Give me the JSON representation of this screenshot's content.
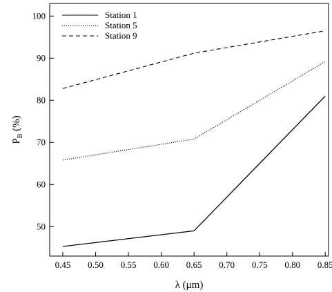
{
  "chart_data": {
    "type": "line",
    "x": [
      0.45,
      0.65,
      0.85
    ],
    "xticks": [
      0.45,
      0.5,
      0.55,
      0.6,
      0.65,
      0.7,
      0.75,
      0.8,
      0.85
    ],
    "xtick_labels": [
      "0.45",
      "0.50",
      "0.55",
      "0.60",
      "0.65",
      "0.70",
      "0.75",
      "0.80",
      "0.85"
    ],
    "yticks": [
      50,
      60,
      70,
      80,
      90,
      100
    ],
    "ytick_labels": [
      "50",
      "60",
      "70",
      "80",
      "90",
      "100"
    ],
    "xlim": [
      0.43,
      0.855
    ],
    "ylim": [
      43,
      103
    ],
    "xlabel": "λ (μm)",
    "ylabel_main": "P",
    "ylabel_sub": "B",
    "ylabel_suffix": " (%)",
    "grid": false,
    "legend_position": "top-left",
    "series": [
      {
        "name": "Station 1",
        "values": [
          45.3,
          49.0,
          81.0
        ],
        "color": "#000000",
        "dash": "solid"
      },
      {
        "name": "Station 5",
        "values": [
          65.8,
          70.8,
          89.2
        ],
        "color": "#000000",
        "dash": "dotted"
      },
      {
        "name": "Station 9",
        "values": [
          82.8,
          91.2,
          96.5
        ],
        "color": "#000000",
        "dash": "dashed"
      }
    ]
  }
}
